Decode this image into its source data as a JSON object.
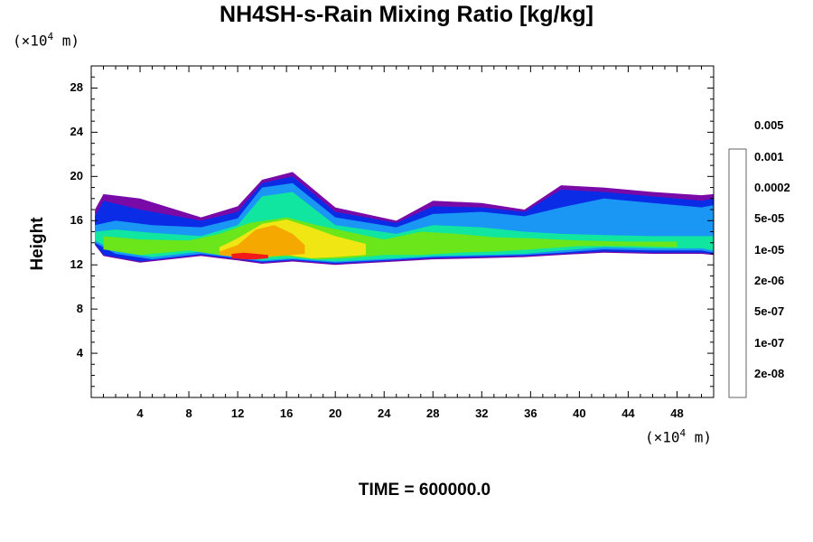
{
  "chart_data": {
    "type": "heatmap",
    "title": "NH4SH-s-Rain Mixing Ratio [kg/kg]",
    "ylabel": "Height",
    "xlabel": "",
    "x_unit_prefix": "(×10",
    "x_unit_exp": "4",
    "x_unit_suffix": " m)",
    "y_unit_prefix": "(×10",
    "y_unit_exp": "4",
    "y_unit_suffix": " m)",
    "xlim": [
      0,
      51
    ],
    "ylim": [
      0,
      30
    ],
    "x_ticks": [
      4,
      8,
      12,
      16,
      20,
      24,
      28,
      32,
      36,
      40,
      44,
      48
    ],
    "y_ticks": [
      4,
      8,
      12,
      16,
      20,
      24,
      28
    ],
    "time_label": "TIME = 600000.0",
    "colorbar": {
      "colors": [
        "#7a0aa8",
        "#0a1c8c",
        "#0a2ce6",
        "#1a62f0",
        "#1a96f5",
        "#12d8f2",
        "#10e6a0",
        "#1ee01e",
        "#6ae61a",
        "#b4e61a",
        "#f0e614",
        "#f5a800",
        "#fa6400",
        "#f51a1a",
        "#f04a4a",
        "#f5a0a0"
      ],
      "labels": [
        "2e-08",
        "1e-07",
        "5e-07",
        "2e-06",
        "1e-05",
        "5e-05",
        "0.0002",
        "0.001",
        "0.005"
      ]
    },
    "field_levels": [
      {
        "x": [
          0.3,
          1.0,
          4.0,
          9.0,
          12.0,
          14.0,
          16.5,
          20.0,
          25.0,
          28.0,
          32.0,
          35.5,
          38.5,
          42.0,
          46.0,
          50.0,
          51.0
        ],
        "top": [
          17.0,
          18.4,
          18.0,
          16.3,
          17.3,
          19.7,
          20.4,
          17.2,
          16.0,
          17.8,
          17.6,
          17.0,
          19.2,
          19.0,
          18.6,
          18.3,
          18.4
        ],
        "bottom": [
          13.8,
          12.8,
          12.2,
          12.8,
          12.4,
          12.1,
          12.3,
          12.0,
          12.3,
          12.5,
          12.6,
          12.7,
          12.9,
          13.1,
          13.0,
          13.0,
          12.9
        ],
        "level": 0
      },
      {
        "x": [
          0.3,
          1.0,
          4.0,
          9.0,
          12.0,
          14.0,
          16.5,
          20.0,
          25.0,
          28.0,
          32.0,
          35.5,
          38.5,
          42.0,
          46.0,
          50.0,
          51.0
        ],
        "top": [
          16.4,
          17.8,
          17.0,
          16.0,
          16.8,
          19.4,
          20.0,
          16.8,
          15.8,
          17.3,
          17.2,
          16.8,
          18.8,
          18.6,
          18.2,
          17.8,
          18.0
        ],
        "bottom": [
          13.9,
          12.9,
          12.3,
          12.9,
          12.5,
          12.2,
          12.4,
          12.1,
          12.4,
          12.6,
          12.7,
          12.8,
          13.0,
          13.2,
          13.1,
          13.1,
          13.0
        ],
        "level": 2
      },
      {
        "x": [
          0.3,
          2.0,
          5.0,
          9.0,
          12.0,
          14.0,
          16.5,
          20.0,
          25.0,
          28.0,
          32.0,
          35.5,
          38.5,
          42.0,
          46.0,
          50.0,
          51.0
        ],
        "top": [
          15.6,
          16.0,
          15.6,
          15.4,
          16.2,
          19.0,
          19.4,
          16.3,
          15.4,
          16.6,
          16.8,
          16.4,
          17.2,
          18.0,
          17.6,
          17.2,
          17.4
        ],
        "bottom": [
          14.0,
          13.0,
          12.5,
          13.0,
          12.6,
          12.3,
          12.5,
          12.2,
          12.5,
          12.7,
          12.8,
          12.9,
          13.1,
          13.4,
          13.3,
          13.3,
          13.1
        ],
        "level": 4
      },
      {
        "x": [
          0.3,
          2.0,
          5.0,
          9.0,
          12.0,
          14.0,
          16.5,
          20.0,
          25.0,
          28.0,
          32.0,
          35.5,
          38.5,
          42.0,
          46.0,
          50.0,
          51.0
        ],
        "top": [
          15.0,
          15.2,
          14.9,
          14.6,
          15.6,
          18.2,
          18.6,
          15.6,
          14.8,
          15.6,
          15.4,
          15.0,
          14.8,
          14.7,
          14.6,
          14.6,
          14.6
        ],
        "bottom": [
          14.2,
          13.2,
          12.7,
          13.2,
          12.7,
          12.4,
          12.6,
          12.3,
          12.6,
          12.8,
          12.9,
          13.0,
          13.3,
          13.6,
          13.5,
          13.5,
          13.3
        ],
        "level": 6
      },
      {
        "x": [
          1.0,
          4.0,
          8.0,
          10.5,
          13.0,
          16.0,
          18.5,
          21.0,
          24.0,
          27.0,
          30.0,
          33.0,
          36.0,
          40.0,
          44.0,
          48.0
        ],
        "top": [
          14.6,
          14.3,
          14.2,
          14.8,
          15.8,
          16.3,
          15.6,
          15.0,
          14.3,
          15.0,
          14.8,
          14.5,
          14.4,
          14.2,
          14.1,
          14.1
        ],
        "bottom": [
          13.4,
          12.9,
          13.3,
          12.9,
          12.6,
          12.8,
          12.5,
          12.6,
          12.9,
          12.9,
          13.1,
          13.2,
          13.4,
          13.7,
          13.7,
          13.6
        ],
        "level": 8
      },
      {
        "x": [
          10.5,
          12.0,
          14.0,
          16.0,
          18.0,
          20.0,
          22.5
        ],
        "top": [
          13.6,
          14.4,
          15.7,
          16.1,
          15.4,
          14.6,
          13.9
        ],
        "bottom": [
          12.9,
          12.7,
          12.7,
          12.9,
          12.6,
          12.7,
          12.9
        ],
        "level": 10
      },
      {
        "x": [
          10.5,
          12.0,
          13.5,
          15.0,
          16.5,
          17.5
        ],
        "top": [
          13.2,
          13.8,
          15.2,
          15.6,
          14.8,
          13.8
        ],
        "bottom": [
          12.9,
          12.7,
          12.7,
          12.8,
          12.9,
          13.0
        ],
        "level": 11
      },
      {
        "x": [
          11.5,
          12.5,
          13.5,
          14.5
        ],
        "top": [
          13.0,
          13.1,
          13.0,
          12.9
        ],
        "bottom": [
          12.6,
          12.5,
          12.5,
          12.6
        ],
        "level": 13
      }
    ]
  }
}
